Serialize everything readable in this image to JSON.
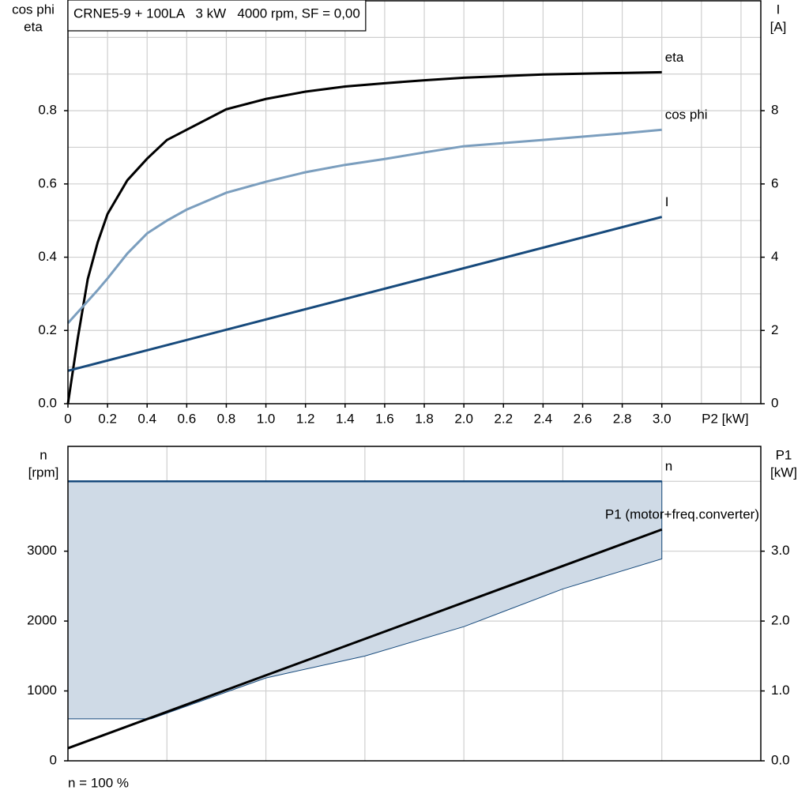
{
  "chart_data": [
    {
      "type": "line",
      "title": "CRNE5-9 + 100LA   3 kW   4000 rpm, SF = 0,00",
      "xlabel": "P2 [kW]",
      "ylabel": [
        "cos phi",
        "eta"
      ],
      "y2label": [
        "I",
        "[A]"
      ],
      "xlim": [
        0,
        3.5
      ],
      "ylim": [
        0,
        1.1
      ],
      "y2lim": [
        0,
        11
      ],
      "xticks": [
        0,
        0.2,
        0.4,
        0.6,
        0.8,
        {
          "value": 1,
          "label": "1.0"
        },
        1.2,
        1.4,
        1.6,
        1.8,
        {
          "value": 2,
          "label": "2.0"
        },
        2.2,
        2.4,
        2.6,
        2.8,
        {
          "value": 3,
          "label": "3.0"
        }
      ],
      "yticks": [
        {
          "value": 0,
          "label": "0.0"
        },
        0.2,
        0.4,
        0.6,
        0.8
      ],
      "y2ticks": [
        0,
        2,
        4,
        6,
        8
      ],
      "x_grid": [
        0.2,
        0.4,
        0.6,
        0.8,
        1,
        1.2,
        1.4,
        1.6,
        1.8,
        2,
        2.2,
        2.4,
        2.6,
        2.8,
        3,
        3.2,
        3.4
      ],
      "y_grid": [
        0.1,
        0.2,
        0.3,
        0.4,
        0.5,
        0.6,
        0.7,
        0.8,
        0.9,
        1
      ],
      "x": [
        0,
        0.05,
        0.1,
        0.15,
        0.2,
        0.3,
        0.4,
        0.5,
        0.6,
        0.8,
        1,
        1.2,
        1.4,
        1.6,
        1.8,
        2,
        2.4,
        2.8,
        3
      ],
      "series": [
        {
          "name": "eta",
          "color": "#000000",
          "values": [
            0,
            0.18,
            0.34,
            0.44,
            0.518,
            0.61,
            0.669,
            0.72,
            0.748,
            0.804,
            0.832,
            0.852,
            0.866,
            0.875,
            0.883,
            0.89,
            0.899,
            0.903,
            0.905
          ]
        },
        {
          "name": "cos phi",
          "color": "#7b9ebe",
          "values": [
            0.22,
            0.25,
            0.28,
            0.31,
            0.342,
            0.41,
            0.465,
            0.5,
            0.53,
            0.576,
            0.606,
            0.632,
            0.652,
            0.668,
            0.686,
            0.703,
            0.72,
            0.738,
            0.748
          ]
        },
        {
          "name": "I",
          "color": "#174a7c",
          "axis": "y2",
          "x": [
            0,
            3
          ],
          "values": [
            0.9,
            5.1
          ]
        }
      ]
    },
    {
      "type": "line",
      "note": "n = 100 %",
      "ylabel": [
        "n",
        "[rpm]"
      ],
      "y2label": [
        "P1",
        "[kW]"
      ],
      "xlim": [
        0,
        3.5
      ],
      "ylim": [
        0,
        4500
      ],
      "y2lim": [
        0,
        4.5
      ],
      "yticks": [
        0,
        1000,
        2000,
        3000
      ],
      "y2ticks": [
        {
          "value": 0,
          "label": "0.0"
        },
        {
          "value": 1,
          "label": "1.0"
        },
        {
          "value": 2,
          "label": "2.0"
        },
        {
          "value": 3,
          "label": "3.0"
        }
      ],
      "x_grid": [
        0.5,
        1,
        1.5,
        2,
        2.5,
        3
      ],
      "y_grid": [
        1000,
        2000,
        3000,
        4000
      ],
      "series": [
        {
          "name": "n",
          "color": "#174a7c",
          "x": [
            0,
            3
          ],
          "values": [
            4000,
            4000
          ]
        },
        {
          "color": "#174a7c",
          "fill": "#cfdae6",
          "x": [
            0,
            0.42,
            1,
            1.5,
            2,
            2.5,
            3
          ],
          "values": [
            600,
            600,
            1186,
            1500,
            1920,
            2460,
            2890
          ]
        },
        {
          "name": "P1 (motor+freq.converter)",
          "color": "#000000",
          "axis": "y2",
          "x": [
            0,
            3
          ],
          "values": [
            0.18,
            3.31
          ]
        }
      ]
    }
  ]
}
